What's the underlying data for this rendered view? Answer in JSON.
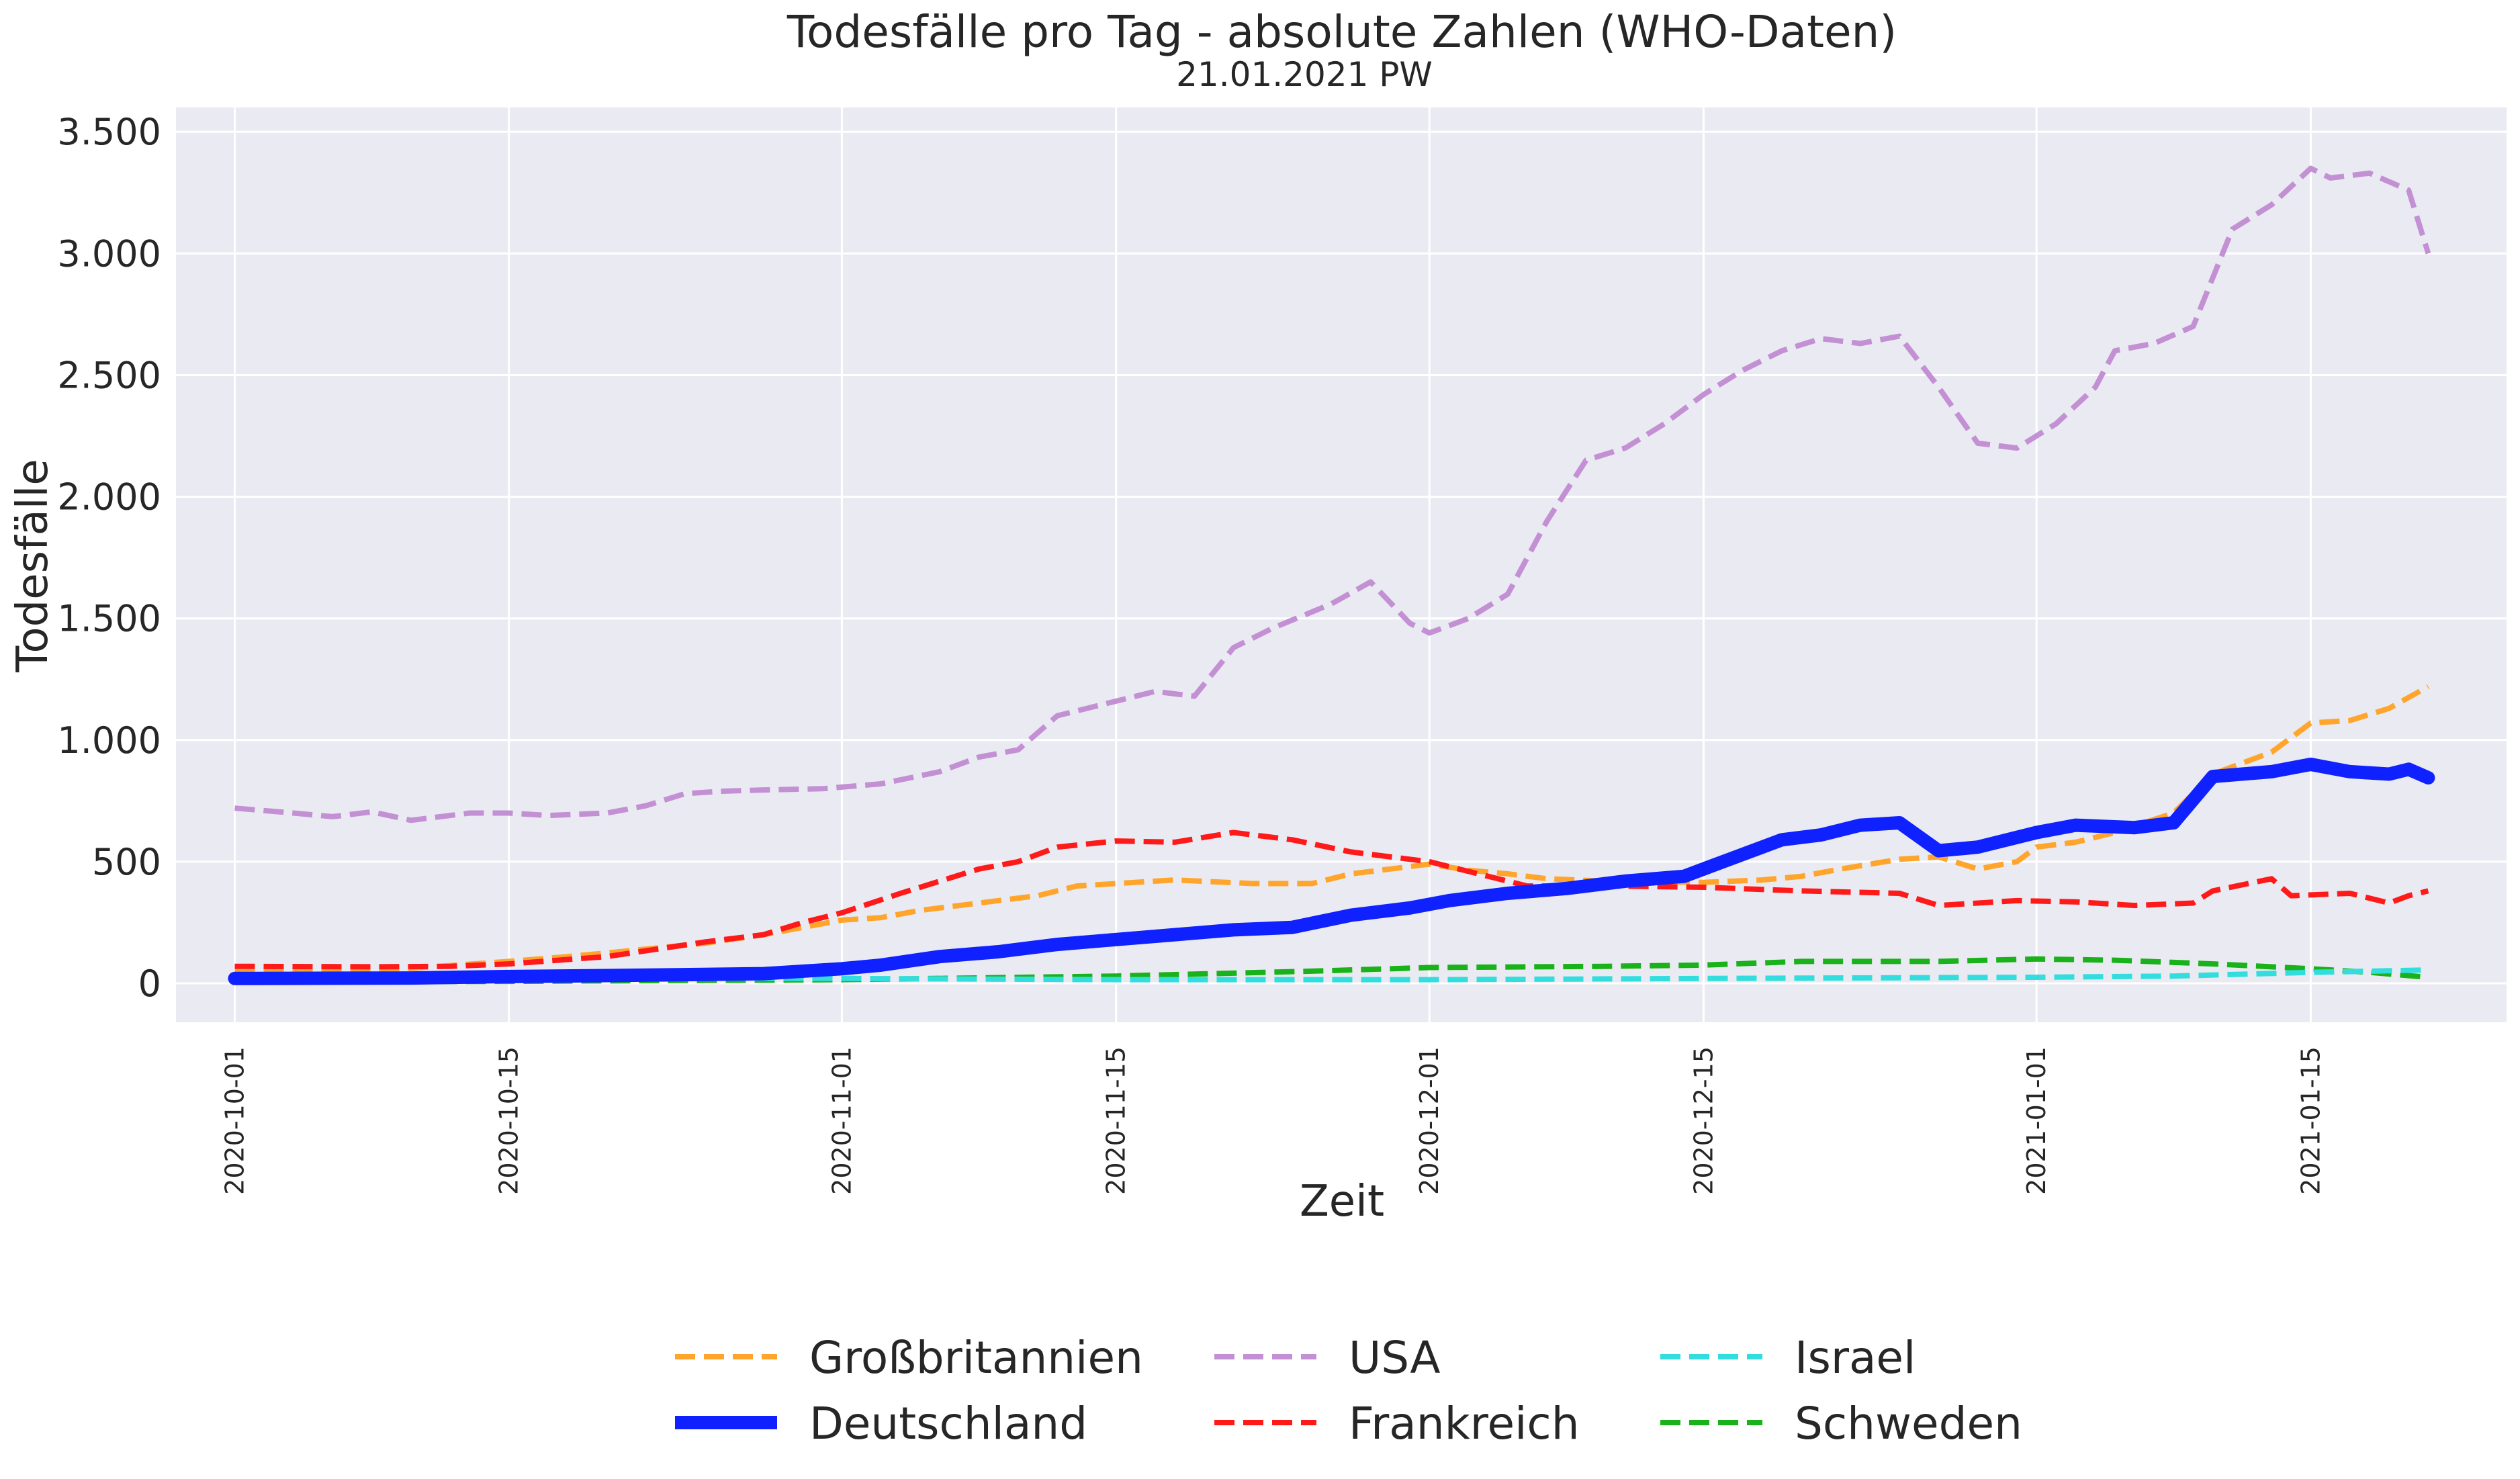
{
  "chart_data": {
    "type": "line",
    "title": "Todesfälle pro Tag - absolute Zahlen (WHO-Daten)",
    "subtitle": "21.01.2021 PW",
    "xlabel": "Zeit",
    "ylabel": "Todesfälle",
    "xlim": [
      "2020-09-28",
      "2021-01-25"
    ],
    "ylim": [
      -160,
      3600
    ],
    "yticks": [
      0,
      500,
      1000,
      1500,
      2000,
      2500,
      3000,
      3500
    ],
    "ytick_labels": [
      "0",
      "500",
      "1.000",
      "1.500",
      "2.000",
      "2.500",
      "3.000",
      "3.500"
    ],
    "xticks": [
      "2020-10-01",
      "2020-10-15",
      "2020-11-01",
      "2020-11-15",
      "2020-12-01",
      "2020-12-15",
      "2021-01-01",
      "2021-01-15"
    ],
    "grid": true,
    "legend_position": "bottom-center",
    "colors": {
      "background": "#eaeaf2",
      "grid": "#ffffff"
    },
    "series": [
      {
        "name": "Großbritannien",
        "color": "#ffa52c",
        "style": "dashed",
        "points": [
          [
            "2020-10-01",
            50
          ],
          [
            "2020-10-05",
            55
          ],
          [
            "2020-10-10",
            62
          ],
          [
            "2020-10-15",
            90
          ],
          [
            "2020-10-18",
            110
          ],
          [
            "2020-10-20",
            125
          ],
          [
            "2020-10-25",
            165
          ],
          [
            "2020-10-28",
            200
          ],
          [
            "2020-11-01",
            260
          ],
          [
            "2020-11-03",
            270
          ],
          [
            "2020-11-05",
            300
          ],
          [
            "2020-11-08",
            330
          ],
          [
            "2020-11-11",
            360
          ],
          [
            "2020-11-13",
            400
          ],
          [
            "2020-11-18",
            425
          ],
          [
            "2020-11-22",
            410
          ],
          [
            "2020-11-25",
            410
          ],
          [
            "2020-11-27",
            450
          ],
          [
            "2020-11-29",
            470
          ],
          [
            "2020-12-01",
            490
          ],
          [
            "2020-12-03",
            465
          ],
          [
            "2020-12-05",
            450
          ],
          [
            "2020-12-07",
            430
          ],
          [
            "2020-12-10",
            420
          ],
          [
            "2020-12-15",
            415
          ],
          [
            "2020-12-18",
            425
          ],
          [
            "2020-12-20",
            440
          ],
          [
            "2020-12-22",
            470
          ],
          [
            "2020-12-25",
            510
          ],
          [
            "2020-12-27",
            520
          ],
          [
            "2020-12-29",
            470
          ],
          [
            "2020-12-31",
            500
          ],
          [
            "2021-01-01",
            560
          ],
          [
            "2021-01-03",
            580
          ],
          [
            "2021-01-05",
            620
          ],
          [
            "2021-01-08",
            700
          ],
          [
            "2021-01-10",
            860
          ],
          [
            "2021-01-13",
            950
          ],
          [
            "2021-01-15",
            1070
          ],
          [
            "2021-01-17",
            1080
          ],
          [
            "2021-01-19",
            1130
          ],
          [
            "2021-01-21",
            1220
          ]
        ]
      },
      {
        "name": "USA",
        "color": "#c390d4",
        "style": "dashed",
        "points": [
          [
            "2020-10-01",
            720
          ],
          [
            "2020-10-04",
            700
          ],
          [
            "2020-10-06",
            685
          ],
          [
            "2020-10-08",
            705
          ],
          [
            "2020-10-10",
            670
          ],
          [
            "2020-10-13",
            700
          ],
          [
            "2020-10-15",
            700
          ],
          [
            "2020-10-17",
            690
          ],
          [
            "2020-10-20",
            700
          ],
          [
            "2020-10-22",
            730
          ],
          [
            "2020-10-24",
            780
          ],
          [
            "2020-10-26",
            790
          ],
          [
            "2020-10-28",
            795
          ],
          [
            "2020-10-31",
            800
          ],
          [
            "2020-11-03",
            820
          ],
          [
            "2020-11-06",
            870
          ],
          [
            "2020-11-08",
            930
          ],
          [
            "2020-11-10",
            960
          ],
          [
            "2020-11-12",
            1100
          ],
          [
            "2020-11-15",
            1160
          ],
          [
            "2020-11-17",
            1200
          ],
          [
            "2020-11-19",
            1180
          ],
          [
            "2020-11-21",
            1380
          ],
          [
            "2020-11-23",
            1460
          ],
          [
            "2020-11-26",
            1560
          ],
          [
            "2020-11-28",
            1650
          ],
          [
            "2020-11-30",
            1480
          ],
          [
            "2020-12-01",
            1440
          ],
          [
            "2020-12-03",
            1500
          ],
          [
            "2020-12-05",
            1600
          ],
          [
            "2020-12-07",
            1900
          ],
          [
            "2020-12-09",
            2150
          ],
          [
            "2020-12-11",
            2200
          ],
          [
            "2020-12-13",
            2300
          ],
          [
            "2020-12-15",
            2420
          ],
          [
            "2020-12-17",
            2520
          ],
          [
            "2020-12-19",
            2600
          ],
          [
            "2020-12-21",
            2650
          ],
          [
            "2020-12-23",
            2630
          ],
          [
            "2020-12-25",
            2660
          ],
          [
            "2020-12-27",
            2450
          ],
          [
            "2020-12-29",
            2220
          ],
          [
            "2020-12-31",
            2200
          ],
          [
            "2021-01-02",
            2300
          ],
          [
            "2021-01-04",
            2450
          ],
          [
            "2021-01-05",
            2600
          ],
          [
            "2021-01-07",
            2630
          ],
          [
            "2021-01-09",
            2700
          ],
          [
            "2021-01-11",
            3100
          ],
          [
            "2021-01-13",
            3200
          ],
          [
            "2021-01-15",
            3350
          ],
          [
            "2021-01-16",
            3310
          ],
          [
            "2021-01-18",
            3330
          ],
          [
            "2021-01-20",
            3260
          ],
          [
            "2021-01-21",
            3000
          ]
        ]
      },
      {
        "name": "Israel",
        "color": "#34dddd",
        "style": "dashed",
        "points": [
          [
            "2020-10-01",
            20
          ],
          [
            "2020-10-15",
            25
          ],
          [
            "2020-11-01",
            20
          ],
          [
            "2020-11-15",
            15
          ],
          [
            "2020-12-01",
            15
          ],
          [
            "2020-12-15",
            20
          ],
          [
            "2021-01-01",
            25
          ],
          [
            "2021-01-08",
            30
          ],
          [
            "2021-01-15",
            45
          ],
          [
            "2021-01-21",
            55
          ]
        ]
      },
      {
        "name": "Deutschland",
        "color": "#1021ff",
        "style": "solid",
        "points": [
          [
            "2020-10-01",
            20
          ],
          [
            "2020-10-10",
            22
          ],
          [
            "2020-10-15",
            28
          ],
          [
            "2020-10-20",
            32
          ],
          [
            "2020-10-28",
            40
          ],
          [
            "2020-11-01",
            60
          ],
          [
            "2020-11-03",
            75
          ],
          [
            "2020-11-06",
            110
          ],
          [
            "2020-11-09",
            130
          ],
          [
            "2020-11-12",
            160
          ],
          [
            "2020-11-15",
            180
          ],
          [
            "2020-11-18",
            200
          ],
          [
            "2020-11-21",
            220
          ],
          [
            "2020-11-24",
            230
          ],
          [
            "2020-11-27",
            280
          ],
          [
            "2020-11-30",
            310
          ],
          [
            "2020-12-02",
            340
          ],
          [
            "2020-12-05",
            370
          ],
          [
            "2020-12-08",
            390
          ],
          [
            "2020-12-11",
            420
          ],
          [
            "2020-12-14",
            440
          ],
          [
            "2020-12-16",
            500
          ],
          [
            "2020-12-19",
            590
          ],
          [
            "2020-12-21",
            610
          ],
          [
            "2020-12-23",
            650
          ],
          [
            "2020-12-25",
            660
          ],
          [
            "2020-12-27",
            545
          ],
          [
            "2020-12-29",
            560
          ],
          [
            "2021-01-01",
            620
          ],
          [
            "2021-01-03",
            650
          ],
          [
            "2021-01-06",
            640
          ],
          [
            "2021-01-08",
            660
          ],
          [
            "2021-01-10",
            850
          ],
          [
            "2021-01-13",
            870
          ],
          [
            "2021-01-15",
            900
          ],
          [
            "2021-01-17",
            870
          ],
          [
            "2021-01-19",
            860
          ],
          [
            "2021-01-20",
            880
          ],
          [
            "2021-01-21",
            845
          ]
        ]
      },
      {
        "name": "Frankreich",
        "color": "#ff1a1a",
        "style": "dashed",
        "points": [
          [
            "2020-10-01",
            70
          ],
          [
            "2020-10-08",
            68
          ],
          [
            "2020-10-12",
            70
          ],
          [
            "2020-10-15",
            80
          ],
          [
            "2020-10-20",
            110
          ],
          [
            "2020-10-25",
            170
          ],
          [
            "2020-10-28",
            200
          ],
          [
            "2020-10-30",
            250
          ],
          [
            "2020-11-01",
            290
          ],
          [
            "2020-11-04",
            370
          ],
          [
            "2020-11-06",
            420
          ],
          [
            "2020-11-08",
            470
          ],
          [
            "2020-11-10",
            500
          ],
          [
            "2020-11-12",
            560
          ],
          [
            "2020-11-15",
            585
          ],
          [
            "2020-11-18",
            580
          ],
          [
            "2020-11-21",
            620
          ],
          [
            "2020-11-24",
            590
          ],
          [
            "2020-11-27",
            540
          ],
          [
            "2020-11-30",
            510
          ],
          [
            "2020-12-01",
            500
          ],
          [
            "2020-12-03",
            460
          ],
          [
            "2020-12-06",
            400
          ],
          [
            "2020-12-10",
            400
          ],
          [
            "2020-12-15",
            395
          ],
          [
            "2020-12-20",
            380
          ],
          [
            "2020-12-25",
            370
          ],
          [
            "2020-12-27",
            320
          ],
          [
            "2020-12-31",
            340
          ],
          [
            "2021-01-03",
            335
          ],
          [
            "2021-01-06",
            320
          ],
          [
            "2021-01-09",
            330
          ],
          [
            "2021-01-10",
            380
          ],
          [
            "2021-01-13",
            430
          ],
          [
            "2021-01-14",
            360
          ],
          [
            "2021-01-17",
            370
          ],
          [
            "2021-01-19",
            330
          ],
          [
            "2021-01-20",
            360
          ],
          [
            "2021-01-21",
            380
          ]
        ]
      },
      {
        "name": "Schweden",
        "color": "#1ab21a",
        "style": "dashed",
        "points": [
          [
            "2020-10-01",
            5
          ],
          [
            "2020-10-15",
            8
          ],
          [
            "2020-11-01",
            15
          ],
          [
            "2020-11-15",
            30
          ],
          [
            "2020-11-25",
            50
          ],
          [
            "2020-12-01",
            65
          ],
          [
            "2020-12-10",
            70
          ],
          [
            "2020-12-15",
            75
          ],
          [
            "2020-12-20",
            90
          ],
          [
            "2020-12-27",
            90
          ],
          [
            "2021-01-01",
            100
          ],
          [
            "2021-01-05",
            95
          ],
          [
            "2021-01-10",
            80
          ],
          [
            "2021-01-15",
            60
          ],
          [
            "2021-01-18",
            45
          ],
          [
            "2021-01-21",
            25
          ]
        ]
      }
    ],
    "legend": [
      [
        "Großbritannien",
        "USA",
        "Israel"
      ],
      [
        "Deutschland",
        "Frankreich",
        "Schweden"
      ]
    ]
  }
}
